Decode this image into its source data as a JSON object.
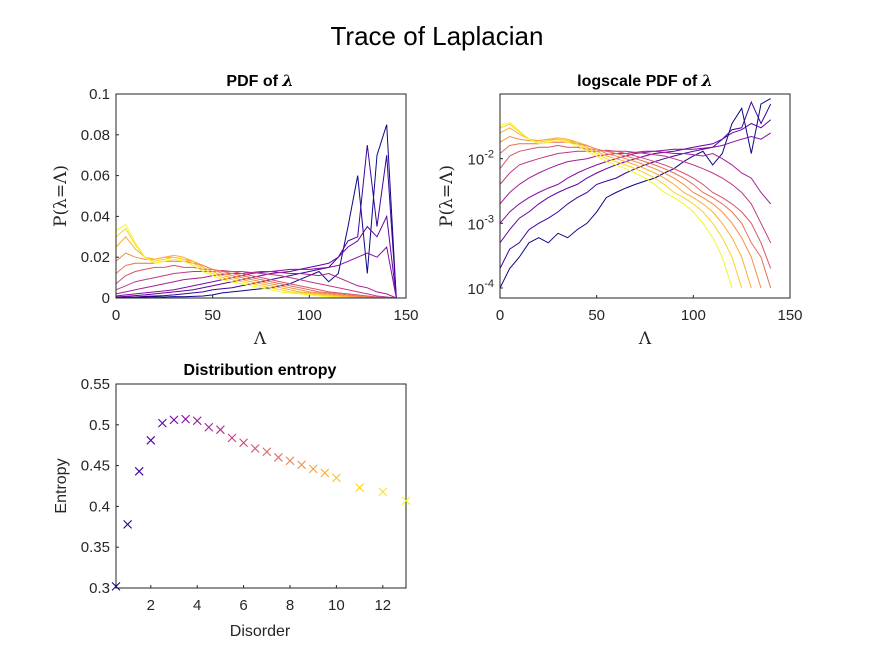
{
  "figure": {
    "title": "Trace of Laplacian"
  },
  "colors": {
    "axis": "#262626",
    "colormap": [
      "#0d0887",
      "#46039f",
      "#7201a8",
      "#9c179e",
      "#bd3786",
      "#d8576b",
      "#ed7953",
      "#fb9f3a",
      "#fdca26",
      "#f0f921"
    ]
  },
  "chart_data": [
    {
      "id": "pdf",
      "type": "line",
      "title": "PDF of λ",
      "title_prefix": "PDF of ",
      "title_symbol": "λ",
      "xlabel": "Λ",
      "ylabel": "P(λ=Λ)",
      "xlim": [
        0,
        150
      ],
      "ylim": [
        0,
        0.1
      ],
      "xticks": [
        0,
        50,
        100,
        150
      ],
      "yticks": [
        0,
        0.02,
        0.04,
        0.06,
        0.08,
        0.1
      ],
      "ytick_labels": [
        "0",
        "0.02",
        "0.04",
        "0.06",
        "0.08",
        "0.1"
      ],
      "x": [
        0,
        5,
        10,
        15,
        20,
        25,
        30,
        35,
        40,
        45,
        50,
        55,
        60,
        65,
        70,
        75,
        80,
        85,
        90,
        95,
        100,
        105,
        110,
        115,
        120,
        125,
        130,
        135,
        140,
        145,
        150
      ],
      "series": [
        {
          "values": [
            0.0001,
            0.0002,
            0.0003,
            0.0005,
            0.0006,
            0.0005,
            0.0007,
            0.0006,
            0.0008,
            0.001,
            0.0015,
            0.0025,
            0.003,
            0.0035,
            0.004,
            0.0045,
            0.005,
            0.006,
            0.007,
            0.009,
            0.011,
            0.013,
            0.008,
            0.012,
            0.035,
            0.06,
            0.012,
            0.07,
            0.085,
            0.0,
            0.0
          ]
        },
        {
          "values": [
            0.0002,
            0.0004,
            0.0005,
            0.0008,
            0.001,
            0.0012,
            0.0015,
            0.002,
            0.0025,
            0.003,
            0.004,
            0.0045,
            0.005,
            0.006,
            0.007,
            0.008,
            0.009,
            0.01,
            0.011,
            0.012,
            0.013,
            0.014,
            0.015,
            0.02,
            0.028,
            0.03,
            0.075,
            0.035,
            0.07,
            0.0,
            0.0
          ]
        },
        {
          "values": [
            0.0005,
            0.0008,
            0.0012,
            0.0015,
            0.002,
            0.0025,
            0.003,
            0.0035,
            0.004,
            0.005,
            0.006,
            0.007,
            0.008,
            0.009,
            0.01,
            0.011,
            0.012,
            0.0125,
            0.013,
            0.014,
            0.015,
            0.016,
            0.017,
            0.02,
            0.025,
            0.028,
            0.035,
            0.03,
            0.04,
            0.0,
            0.0
          ]
        },
        {
          "values": [
            0.001,
            0.0015,
            0.002,
            0.0025,
            0.003,
            0.0035,
            0.004,
            0.005,
            0.006,
            0.007,
            0.008,
            0.009,
            0.01,
            0.011,
            0.012,
            0.0125,
            0.013,
            0.0135,
            0.014,
            0.014,
            0.014,
            0.0145,
            0.015,
            0.016,
            0.018,
            0.02,
            0.022,
            0.02,
            0.025,
            0.0,
            0.0
          ]
        },
        {
          "values": [
            0.002,
            0.003,
            0.004,
            0.005,
            0.006,
            0.007,
            0.008,
            0.009,
            0.0095,
            0.01,
            0.011,
            0.0115,
            0.012,
            0.012,
            0.0125,
            0.013,
            0.013,
            0.0125,
            0.012,
            0.012,
            0.0115,
            0.011,
            0.012,
            0.01,
            0.008,
            0.006,
            0.005,
            0.003,
            0.002,
            0.0,
            0.0
          ]
        },
        {
          "values": [
            0.004,
            0.006,
            0.008,
            0.009,
            0.01,
            0.011,
            0.012,
            0.0125,
            0.013,
            0.013,
            0.013,
            0.0135,
            0.013,
            0.013,
            0.0125,
            0.012,
            0.0115,
            0.011,
            0.01,
            0.009,
            0.008,
            0.007,
            0.006,
            0.005,
            0.004,
            0.003,
            0.002,
            0.001,
            0.0005,
            0.0,
            0.0
          ]
        },
        {
          "values": [
            0.007,
            0.011,
            0.013,
            0.014,
            0.015,
            0.015,
            0.016,
            0.015,
            0.015,
            0.014,
            0.014,
            0.013,
            0.013,
            0.012,
            0.011,
            0.01,
            0.009,
            0.008,
            0.007,
            0.006,
            0.005,
            0.004,
            0.003,
            0.0025,
            0.002,
            0.0015,
            0.001,
            0.0005,
            0.0002,
            0.0,
            0.0
          ]
        },
        {
          "values": [
            0.012,
            0.016,
            0.017,
            0.017,
            0.017,
            0.018,
            0.018,
            0.018,
            0.017,
            0.016,
            0.014,
            0.013,
            0.012,
            0.011,
            0.01,
            0.009,
            0.008,
            0.007,
            0.006,
            0.005,
            0.004,
            0.003,
            0.0025,
            0.002,
            0.0015,
            0.001,
            0.0005,
            0.0003,
            0.0001,
            0.0,
            0.0
          ]
        },
        {
          "values": [
            0.018,
            0.022,
            0.02,
            0.019,
            0.019,
            0.02,
            0.02,
            0.019,
            0.018,
            0.016,
            0.014,
            0.012,
            0.011,
            0.01,
            0.009,
            0.008,
            0.007,
            0.006,
            0.005,
            0.004,
            0.003,
            0.0025,
            0.002,
            0.0015,
            0.001,
            0.0006,
            0.0003,
            0.0001,
            0.0,
            0.0,
            0.0
          ]
        },
        {
          "values": [
            0.025,
            0.03,
            0.024,
            0.02,
            0.019,
            0.02,
            0.021,
            0.02,
            0.018,
            0.015,
            0.013,
            0.011,
            0.01,
            0.009,
            0.008,
            0.007,
            0.006,
            0.005,
            0.004,
            0.003,
            0.0025,
            0.002,
            0.0015,
            0.001,
            0.0006,
            0.0003,
            0.0001,
            0.0,
            0.0,
            0.0,
            0.0
          ]
        },
        {
          "values": [
            0.03,
            0.034,
            0.026,
            0.02,
            0.018,
            0.019,
            0.02,
            0.019,
            0.017,
            0.014,
            0.012,
            0.01,
            0.009,
            0.008,
            0.007,
            0.006,
            0.005,
            0.004,
            0.003,
            0.0025,
            0.002,
            0.0015,
            0.001,
            0.0006,
            0.0003,
            0.0001,
            0.0,
            0.0,
            0.0,
            0.0,
            0.0
          ]
        },
        {
          "values": [
            0.033,
            0.036,
            0.027,
            0.02,
            0.017,
            0.018,
            0.019,
            0.018,
            0.016,
            0.013,
            0.011,
            0.009,
            0.008,
            0.007,
            0.006,
            0.005,
            0.004,
            0.003,
            0.0025,
            0.002,
            0.0015,
            0.001,
            0.0006,
            0.0003,
            0.0001,
            0.0,
            0.0,
            0.0,
            0.0,
            0.0,
            0.0
          ]
        }
      ]
    },
    {
      "id": "logpdf",
      "type": "line",
      "title": "logscale PDF of λ",
      "title_prefix": "logscale PDF of ",
      "title_symbol": "λ",
      "xlabel": "Λ",
      "ylabel": "P(λ=Λ)",
      "yscale": "log",
      "xlim": [
        0,
        150
      ],
      "ylim": [
        7e-05,
        0.1
      ],
      "xticks": [
        0,
        50,
        100,
        150
      ],
      "ytick_labels": [
        {
          "base": "10",
          "exp": "-4"
        },
        {
          "base": "10",
          "exp": "-3"
        },
        {
          "base": "10",
          "exp": "-2"
        }
      ],
      "yticks": [
        0.0001,
        0.001,
        0.01
      ],
      "x": [
        0,
        5,
        10,
        15,
        20,
        25,
        30,
        35,
        40,
        45,
        50,
        55,
        60,
        65,
        70,
        75,
        80,
        85,
        90,
        95,
        100,
        105,
        110,
        115,
        120,
        125,
        130,
        135,
        140,
        145,
        150
      ]
    },
    {
      "id": "entropy",
      "type": "scatter",
      "title": "Distribution entropy",
      "xlabel": "Disorder",
      "ylabel": "Entropy",
      "xlim": [
        0.5,
        13
      ],
      "ylim": [
        0.3,
        0.55
      ],
      "xticks": [
        2,
        4,
        6,
        8,
        10,
        12
      ],
      "yticks": [
        0.3,
        0.35,
        0.4,
        0.45,
        0.5,
        0.55
      ],
      "ytick_labels": [
        "0.3",
        "0.35",
        "0.4",
        "0.45",
        "0.5",
        "0.55"
      ],
      "marker": "x",
      "x": [
        0.5,
        1,
        1.5,
        2,
        2.5,
        3,
        3.5,
        4,
        4.5,
        5,
        5.5,
        6,
        6.5,
        7,
        7.5,
        8,
        8.5,
        9,
        9.5,
        10,
        11,
        12,
        13
      ],
      "values": [
        0.302,
        0.378,
        0.443,
        0.481,
        0.502,
        0.506,
        0.507,
        0.505,
        0.497,
        0.494,
        0.484,
        0.478,
        0.471,
        0.467,
        0.46,
        0.456,
        0.451,
        0.446,
        0.441,
        0.435,
        0.423,
        0.418,
        0.407
      ]
    }
  ]
}
